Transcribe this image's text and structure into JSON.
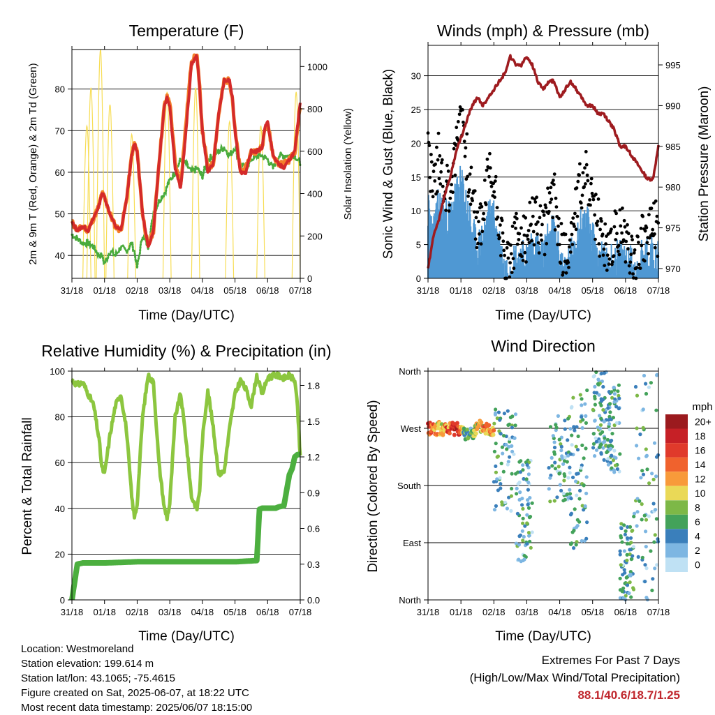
{
  "x_ticks": [
    "31/18",
    "01/18",
    "02/18",
    "03/18",
    "04/18",
    "05/18",
    "06/18",
    "07/18"
  ],
  "colors": {
    "temp_2m": "#d42a2a",
    "temp_9m": "#f47f2a",
    "dewpoint": "#4aab3c",
    "solar": "#f7dd55",
    "wind": "#4f98d3",
    "gust": "#000000",
    "pressure": "#9e1b1f",
    "rh": "#8cc63f",
    "precip": "#4caf3f"
  },
  "chart_data": [
    {
      "type": "line",
      "title": "Temperature (F)",
      "xlabel": "Time (Day/UTC)",
      "ylabel": "2m & 9m T (Red, Orange) & 2m Td (Green)",
      "ylabel_right": "Solar Insolation (Yellow)",
      "x_range_hours": [
        0,
        168
      ],
      "ylim": [
        34.5,
        89.5
      ],
      "ylim_right": [
        0,
        1080
      ],
      "yticks": [
        40,
        50,
        60,
        70,
        80
      ],
      "yticks_right": [
        0,
        200,
        400,
        600,
        800,
        1000
      ],
      "grid": true,
      "series": [
        {
          "x": [
            0,
            4,
            8,
            12,
            16,
            20,
            22,
            24,
            28,
            32,
            36,
            40,
            44,
            46,
            48,
            52,
            56,
            60,
            64,
            68,
            70,
            72,
            76,
            80,
            84,
            88,
            92,
            94,
            96,
            100,
            104,
            108,
            112,
            116,
            118,
            120,
            124,
            128,
            132,
            136,
            140,
            142,
            144,
            148,
            152,
            156,
            160,
            164,
            168
          ],
          "values": [
            48,
            46,
            47,
            46,
            49,
            52,
            55,
            54,
            50,
            47,
            46,
            53,
            64,
            67,
            65,
            50,
            42,
            46,
            62,
            76,
            78,
            76,
            61,
            56,
            70,
            86,
            88,
            80,
            70,
            60,
            62,
            74,
            82,
            82,
            78,
            70,
            60,
            60,
            65,
            65,
            66,
            71,
            72,
            64,
            62,
            61,
            63,
            65,
            77
          ]
        },
        {
          "x": [
            0,
            4,
            8,
            12,
            16,
            20,
            22,
            24,
            28,
            32,
            36,
            40,
            44,
            46,
            48,
            52,
            56,
            60,
            64,
            68,
            70,
            72,
            76,
            80,
            84,
            88,
            92,
            94,
            96,
            100,
            104,
            108,
            112,
            116,
            118,
            120,
            124,
            128,
            132,
            136,
            140,
            142,
            144,
            148,
            152,
            156,
            160,
            164,
            168
          ],
          "values": [
            48,
            46,
            47,
            46,
            49,
            52,
            55,
            54,
            50,
            47,
            46,
            53,
            64,
            67,
            65,
            50,
            42,
            46,
            62,
            76,
            78,
            77,
            62,
            57,
            72,
            87,
            88,
            80,
            70,
            61,
            62,
            74,
            82,
            82,
            78,
            70,
            60,
            61,
            65,
            65,
            66,
            71,
            72,
            64,
            62,
            62,
            63,
            65,
            76
          ]
        },
        {
          "x": [
            0,
            4,
            8,
            12,
            16,
            20,
            22,
            24,
            28,
            32,
            36,
            40,
            44,
            46,
            48,
            52,
            56,
            60,
            64,
            68,
            72,
            76,
            80,
            84,
            88,
            92,
            96,
            100,
            104,
            108,
            112,
            116,
            120,
            124,
            128,
            132,
            136,
            140,
            144,
            148,
            152,
            156,
            160,
            164,
            168
          ],
          "values": [
            45,
            44,
            43,
            43,
            42,
            40,
            40,
            38,
            41,
            40,
            42,
            41,
            43,
            41,
            37,
            45,
            42,
            50,
            53,
            55,
            58,
            60,
            63,
            62,
            60,
            61,
            59,
            63,
            64,
            65,
            66,
            64,
            66,
            62,
            61,
            63,
            64,
            64,
            63,
            61,
            64,
            64,
            64,
            64,
            62
          ]
        },
        {
          "peaks_w_m2": [
            {
              "x": 11,
              "peak": 720
            },
            {
              "x": 14,
              "peak": 900
            },
            {
              "x": 21,
              "peak": 1080
            },
            {
              "x": 28,
              "peak": 820
            },
            {
              "x": 44,
              "peak": 680
            },
            {
              "x": 70,
              "peak": 880
            },
            {
              "x": 91,
              "peak": 900
            },
            {
              "x": 116,
              "peak": 740
            },
            {
              "x": 139,
              "peak": 720
            },
            {
              "x": 165,
              "peak": 880
            }
          ]
        }
      ]
    },
    {
      "type": "scatter",
      "title": "Winds (mph) & Pressure (mb)",
      "xlabel": "Time (Day/UTC)",
      "ylabel": "Sonic Wind & Gust (Blue, Black)",
      "ylabel_right": "Station Pressure (Maroon)",
      "x_range_hours": [
        0,
        168
      ],
      "ylim": [
        0,
        34.5
      ],
      "ylim_right": [
        968.8,
        997.4
      ],
      "yticks": [
        0,
        5,
        10,
        15,
        20,
        25,
        30
      ],
      "yticks_right": [
        970,
        975,
        980,
        985,
        990,
        995
      ],
      "grid": true,
      "series": [
        {
          "x": [
            0,
            4,
            8,
            12,
            16,
            20,
            24,
            28,
            32,
            36,
            40,
            44,
            48,
            52,
            56,
            60,
            64,
            68,
            72,
            76,
            80,
            84,
            88,
            92,
            96,
            100,
            104,
            108,
            112,
            116,
            120,
            124,
            128,
            132,
            136,
            140,
            144,
            148,
            152,
            156,
            160,
            164,
            168
          ],
          "values": [
            10,
            7,
            11,
            9,
            9,
            12,
            14,
            11,
            7,
            4,
            6,
            9,
            9,
            5,
            1,
            2,
            3,
            3,
            3,
            5,
            4,
            3,
            6,
            7,
            3,
            1,
            3,
            6,
            8,
            8,
            6,
            4,
            2,
            2,
            3,
            3,
            3,
            2,
            1,
            3,
            3,
            4,
            3
          ]
        },
        {
          "x": [
            0,
            4,
            8,
            12,
            16,
            20,
            24,
            28,
            32,
            36,
            40,
            44,
            48,
            52,
            56,
            60,
            64,
            68,
            72,
            76,
            80,
            84,
            88,
            92,
            96,
            100,
            104,
            108,
            112,
            116,
            120,
            124,
            128,
            132,
            136,
            140,
            144,
            148,
            152,
            156,
            160,
            164,
            168
          ],
          "values": [
            19,
            14,
            18,
            14,
            13,
            18,
            26,
            18,
            12,
            7,
            9,
            16,
            14,
            9,
            2,
            3,
            6,
            6,
            5,
            9,
            8,
            6,
            11,
            12,
            6,
            3,
            6,
            11,
            14,
            15,
            10,
            8,
            5,
            4,
            6,
            7,
            6,
            4,
            3,
            6,
            6,
            8,
            7
          ]
        },
        {
          "x": [
            0,
            4,
            8,
            12,
            16,
            20,
            24,
            28,
            32,
            36,
            40,
            44,
            48,
            52,
            56,
            60,
            64,
            68,
            72,
            76,
            80,
            84,
            88,
            92,
            96,
            100,
            104,
            108,
            112,
            116,
            120,
            124,
            128,
            132,
            136,
            140,
            144,
            148,
            152,
            156,
            160,
            164,
            168
          ],
          "values": [
            970,
            974,
            976,
            979,
            981,
            984,
            986,
            988,
            990,
            991,
            990,
            991,
            992,
            993,
            994,
            996,
            995,
            995,
            996,
            995,
            993,
            992,
            993,
            993,
            991,
            992,
            993,
            992,
            991,
            990,
            990,
            989,
            989,
            988,
            987,
            985,
            985,
            984,
            983,
            982,
            981,
            981,
            985
          ]
        }
      ]
    },
    {
      "type": "line",
      "title": "Relative Humidity (%) & Precipitation (in)",
      "xlabel": "Time (Day/UTC)",
      "ylabel": "Percent & Total Rainfall",
      "x_range_hours": [
        0,
        168
      ],
      "ylim": [
        0,
        100
      ],
      "ylim_right": [
        0,
        1.92
      ],
      "yticks": [
        0,
        20,
        40,
        60,
        80,
        100
      ],
      "yticks_right_labels": [
        "0.0",
        "0.3",
        "0.6",
        "0.9",
        "1.2",
        "1.5",
        "1.8"
      ],
      "grid": true,
      "series": [
        {
          "x": [
            0,
            4,
            8,
            12,
            16,
            20,
            22,
            24,
            28,
            32,
            36,
            40,
            44,
            46,
            48,
            52,
            56,
            60,
            64,
            68,
            70,
            72,
            76,
            80,
            84,
            88,
            92,
            94,
            96,
            100,
            104,
            108,
            112,
            116,
            120,
            124,
            128,
            132,
            136,
            140,
            144,
            148,
            152,
            156,
            160,
            164,
            166,
            168
          ],
          "values": [
            96,
            94,
            95,
            90,
            85,
            70,
            58,
            55,
            72,
            85,
            90,
            75,
            45,
            36,
            42,
            80,
            98,
            95,
            60,
            40,
            36,
            42,
            80,
            90,
            70,
            45,
            40,
            48,
            70,
            92,
            75,
            55,
            56,
            75,
            90,
            96,
            92,
            85,
            98,
            90,
            97,
            98,
            98,
            97,
            98,
            96,
            84,
            62
          ]
        },
        {
          "x": [
            0,
            2,
            4,
            8,
            24,
            48,
            72,
            96,
            120,
            136,
            138,
            140,
            144,
            150,
            152,
            156,
            160,
            162,
            164,
            166,
            168
          ],
          "values": [
            0,
            0.15,
            0.3,
            0.31,
            0.31,
            0.32,
            0.32,
            0.32,
            0.32,
            0.33,
            0.76,
            0.77,
            0.77,
            0.77,
            0.78,
            0.79,
            1.05,
            1.1,
            1.2,
            1.22,
            1.22
          ]
        }
      ]
    },
    {
      "type": "scatter",
      "title": "Wind Direction",
      "xlabel": "Time (Day/UTC)",
      "ylabel": "Direction (Colored By Speed)",
      "x_range_hours": [
        0,
        168
      ],
      "ylim": [
        0,
        360
      ],
      "ytick_labels": [
        "North",
        "East",
        "South",
        "West",
        "North"
      ],
      "grid": true,
      "legend": {
        "title": "mph",
        "placement": "right",
        "labels": [
          "20+",
          "18",
          "16",
          "14",
          "12",
          "10",
          "8",
          "6",
          "4",
          "2",
          "0"
        ],
        "colors": [
          "#9b1a1e",
          "#c62026",
          "#e03a2b",
          "#f0622d",
          "#f89a3a",
          "#ead957",
          "#7db847",
          "#43a25a",
          "#3a7fbb",
          "#7db6e2",
          "#bfe1f4"
        ]
      },
      "series": [
        {
          "x": [
            2,
            6,
            10,
            14,
            18,
            22,
            26,
            30,
            34,
            38,
            42,
            46
          ],
          "values": [
            270,
            270,
            268,
            268,
            270,
            272,
            260,
            262,
            266,
            272,
            270,
            268
          ],
          "speed": [
            14,
            12,
            10,
            14,
            16,
            18,
            6,
            4,
            8,
            10,
            12,
            12
          ]
        },
        {
          "spread_hours": [
            [
              48,
              64
            ],
            [
              64,
              76
            ],
            [
              88,
              104
            ],
            [
              104,
              116
            ],
            [
              120,
              130
            ],
            [
              130,
              140
            ],
            [
              140,
              150
            ],
            [
              150,
              168
            ]
          ],
          "direction_band": [
            [
              140,
              300
            ],
            [
              60,
              220
            ],
            [
              150,
              290
            ],
            [
              80,
              330
            ],
            [
              220,
              360
            ],
            [
              200,
              340
            ],
            [
              0,
              120
            ],
            [
              0,
              360
            ]
          ]
        }
      ]
    }
  ],
  "info": {
    "location": "Location: Westmoreland",
    "elevation": "Station elevation: 199.614 m",
    "latlon": "Station lat/lon: 43.1065; -75.4615",
    "created": "Figure created on Sat, 2025-06-07, at 18:22 UTC",
    "recent": "Most recent data timestamp: 2025/06/07 18:15:00"
  },
  "extremes": {
    "title": "Extremes For Past 7 Days",
    "subtitle": "(High/Low/Max Wind/Total Precipitation)",
    "values": "88.1/40.6/18.7/1.25"
  }
}
